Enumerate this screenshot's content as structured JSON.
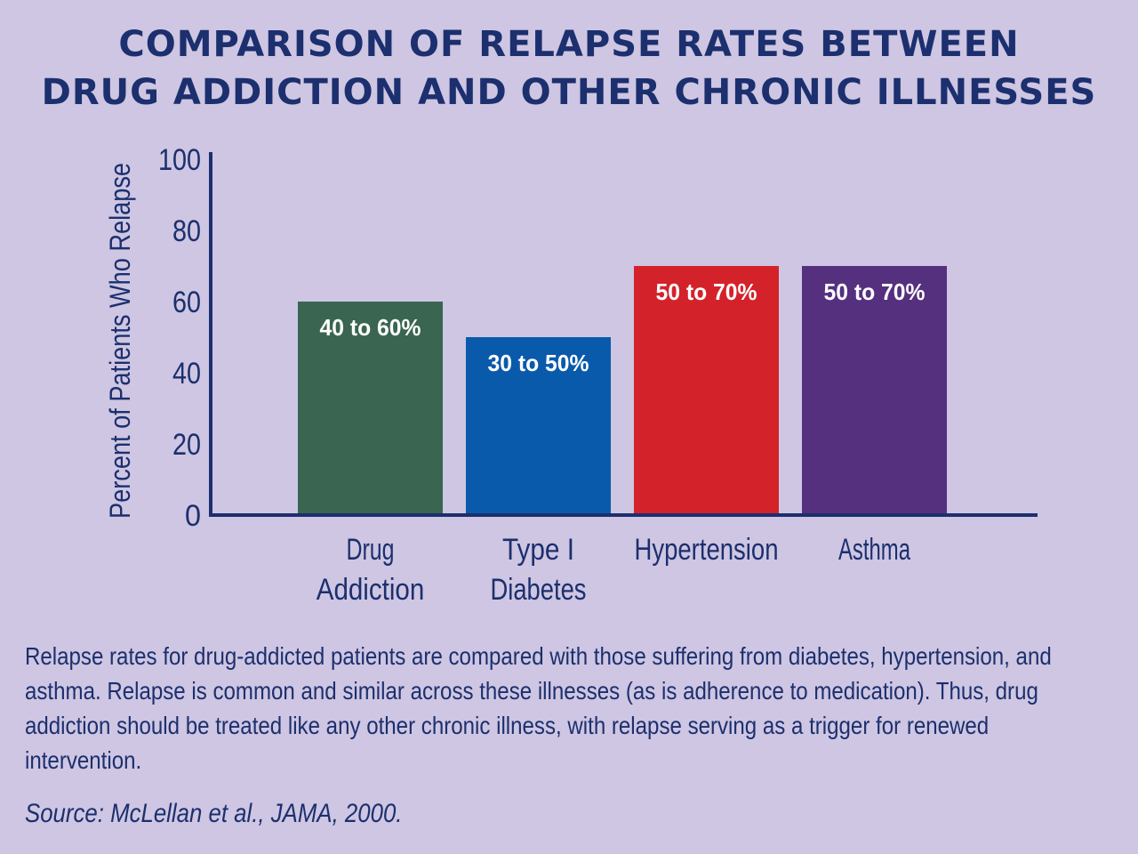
{
  "title_line1": "COMPARISON OF RELAPSE RATES BETWEEN",
  "title_line2": "DRUG ADDICTION AND OTHER CHRONIC ILLNESSES",
  "caption": "Relapse rates for drug-addicted patients are compared with those suffering from diabetes, hypertension, and asthma. Relapse is common and similar across these illnesses (as is adherence to medication). Thus, drug addiction should be treated like any other chronic illness, with relapse serving as a trigger for renewed intervention.",
  "source": "Source: McLellan et al., JAMA, 2000.",
  "colors": {
    "background": "#cec6e2",
    "text": "#1c2f6e",
    "axis": "#1c2f6e"
  },
  "chart_data": {
    "type": "bar",
    "title": "COMPARISON OF RELAPSE RATES BETWEEN DRUG ADDICTION AND OTHER CHRONIC ILLNESSES",
    "ylabel": "Percent of Patients Who Relapse",
    "xlabel": "",
    "ylim": [
      0,
      100
    ],
    "yticks": [
      0,
      20,
      40,
      60,
      80,
      100
    ],
    "grid": false,
    "categories": [
      [
        "Drug",
        "Addiction"
      ],
      [
        "Type I",
        "Diabetes"
      ],
      [
        "Hypertension"
      ],
      [
        "Asthma"
      ]
    ],
    "values": [
      60,
      50,
      70,
      70
    ],
    "ranges": [
      [
        40,
        60
      ],
      [
        30,
        50
      ],
      [
        50,
        70
      ],
      [
        50,
        70
      ]
    ],
    "data_labels": [
      "40 to 60%",
      "30 to 50%",
      "50 to 70%",
      "50 to 70%"
    ],
    "bar_colors": [
      "#3a6550",
      "#0a5aab",
      "#d4222b",
      "#55307f"
    ]
  }
}
